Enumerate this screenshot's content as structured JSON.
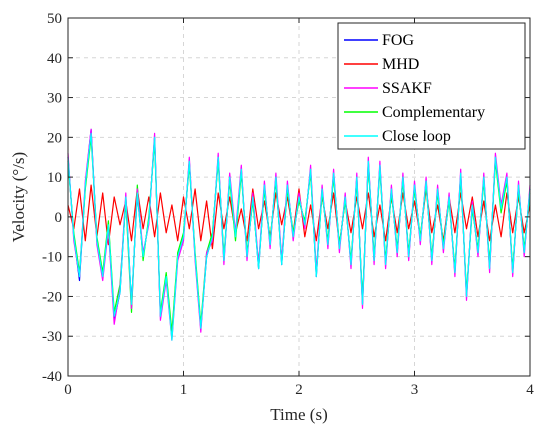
{
  "chart_data": {
    "type": "line",
    "xlabel": "Time (s)",
    "ylabel": "Velocity (°/s)",
    "xlim": [
      0,
      4
    ],
    "ylim": [
      -40,
      50
    ],
    "xticks": [
      0,
      1,
      2,
      3,
      4
    ],
    "yticks": [
      -40,
      -30,
      -20,
      -10,
      0,
      10,
      20,
      30,
      40,
      50
    ],
    "xtick_labels": [
      "0",
      "1",
      "2",
      "3",
      "4"
    ],
    "ytick_labels": [
      "-40",
      "-30",
      "-20",
      "-10",
      "0",
      "10",
      "20",
      "30",
      "40",
      "50"
    ],
    "grid": true,
    "legend_position": "top-right",
    "x": [
      0.0,
      0.05,
      0.1,
      0.15,
      0.2,
      0.25,
      0.3,
      0.35,
      0.4,
      0.45,
      0.5,
      0.55,
      0.6,
      0.65,
      0.7,
      0.75,
      0.8,
      0.85,
      0.9,
      0.95,
      1.0,
      1.05,
      1.1,
      1.15,
      1.2,
      1.25,
      1.3,
      1.35,
      1.4,
      1.45,
      1.5,
      1.55,
      1.6,
      1.65,
      1.7,
      1.75,
      1.8,
      1.85,
      1.9,
      1.95,
      2.0,
      2.05,
      2.1,
      2.15,
      2.2,
      2.25,
      2.3,
      2.35,
      2.4,
      2.45,
      2.5,
      2.55,
      2.6,
      2.65,
      2.7,
      2.75,
      2.8,
      2.85,
      2.9,
      2.95,
      3.0,
      3.05,
      3.1,
      3.15,
      3.2,
      3.25,
      3.3,
      3.35,
      3.4,
      3.45,
      3.5,
      3.55,
      3.6,
      3.65,
      3.7,
      3.75,
      3.8,
      3.85,
      3.9,
      3.95,
      4.0
    ],
    "series": [
      {
        "name": "FOG",
        "color": "#0000ff",
        "values": [
          15,
          -5,
          -16,
          8,
          22,
          -6,
          -15,
          -2,
          -26,
          -19,
          5,
          -22,
          6,
          -10,
          -1,
          20,
          -25,
          -15,
          -30,
          -10,
          -5,
          14,
          -10,
          -28,
          -10,
          -5,
          15,
          -11,
          10,
          -5,
          12,
          -10,
          5,
          -13,
          8,
          -7,
          10,
          -12,
          8,
          -5,
          5,
          -2,
          12,
          -15,
          7,
          -7,
          11,
          -8,
          5,
          -12,
          10,
          -22,
          14,
          -11,
          13,
          -12,
          7,
          -9,
          10,
          -10,
          8,
          -6,
          9,
          -11,
          7,
          -8,
          5,
          -14,
          11,
          -20,
          3,
          -9,
          10,
          -13,
          15,
          2,
          10,
          -14,
          8,
          -9,
          7
        ]
      },
      {
        "name": "MHD",
        "color": "#ff0000",
        "values": [
          3,
          -3,
          7,
          -6,
          8,
          -5,
          6,
          -7,
          5,
          -2,
          4,
          -6,
          7,
          -3,
          5,
          -5,
          6,
          -4,
          3,
          -6,
          5,
          -3,
          7,
          -6,
          4,
          -8,
          6,
          -3,
          5,
          -4,
          2,
          -6,
          7,
          -3,
          4,
          -5,
          6,
          -2,
          5,
          -4,
          7,
          -5,
          3,
          -6,
          5,
          -3,
          6,
          -7,
          4,
          -4,
          5,
          -3,
          6,
          -5,
          3,
          -6,
          5,
          -4,
          6,
          -3,
          4,
          -5,
          7,
          -4,
          3,
          -6,
          5,
          -4,
          6,
          -3,
          5,
          -5,
          4,
          -6,
          3,
          -5,
          6,
          -4,
          5,
          -4,
          3
        ]
      },
      {
        "name": "SSAKF",
        "color": "#ff00ff",
        "values": [
          16,
          -6,
          -15,
          9,
          22,
          -7,
          -16,
          -3,
          -27,
          -18,
          6,
          -23,
          7,
          -9,
          -2,
          21,
          -26,
          -16,
          -31,
          -11,
          -6,
          15,
          -11,
          -29,
          -9,
          -6,
          16,
          -12,
          11,
          -4,
          13,
          -11,
          6,
          -12,
          9,
          -8,
          11,
          -11,
          9,
          -6,
          6,
          -3,
          13,
          -14,
          8,
          -8,
          12,
          -9,
          6,
          -13,
          11,
          -23,
          15,
          -12,
          14,
          -13,
          8,
          -10,
          11,
          -11,
          9,
          -7,
          10,
          -12,
          8,
          -9,
          6,
          -15,
          12,
          -21,
          4,
          -10,
          11,
          -14,
          16,
          3,
          11,
          -15,
          9,
          -10,
          8
        ]
      },
      {
        "name": "Complementary",
        "color": "#00ff00",
        "values": [
          14,
          -4,
          -14,
          7,
          20,
          -5,
          -14,
          -1,
          -24,
          -17,
          4,
          -24,
          8,
          -11,
          0,
          19,
          -24,
          -14,
          -29,
          -9,
          -4,
          13,
          -9,
          -27,
          -9,
          -4,
          14,
          -10,
          9,
          -6,
          11,
          -9,
          4,
          -12,
          7,
          -6,
          9,
          -11,
          7,
          -4,
          4,
          -1,
          11,
          -14,
          6,
          -6,
          10,
          -7,
          4,
          -11,
          9,
          -21,
          13,
          -10,
          12,
          -11,
          6,
          -8,
          9,
          -9,
          7,
          -5,
          8,
          -10,
          6,
          -7,
          4,
          -13,
          10,
          -19,
          2,
          -8,
          9,
          -12,
          14,
          1,
          9,
          -13,
          7,
          -8,
          6
        ]
      },
      {
        "name": "Close loop",
        "color": "#00ffff",
        "values": [
          15,
          -5,
          -15,
          8,
          21,
          -6,
          -15,
          -2,
          -25,
          -19,
          5,
          -22,
          6,
          -10,
          -1,
          20,
          -25,
          -15,
          -31,
          -10,
          -5,
          14,
          -10,
          -28,
          -10,
          -5,
          15,
          -11,
          10,
          -5,
          12,
          -10,
          5,
          -13,
          8,
          -7,
          10,
          -12,
          8,
          -5,
          5,
          -2,
          12,
          -15,
          7,
          -7,
          11,
          -8,
          5,
          -12,
          10,
          -22,
          14,
          -11,
          13,
          -12,
          7,
          -9,
          10,
          -10,
          8,
          -6,
          9,
          -11,
          7,
          -8,
          5,
          -14,
          11,
          -20,
          3,
          -9,
          10,
          -13,
          15,
          2,
          10,
          -14,
          8,
          -9,
          7
        ]
      }
    ]
  }
}
